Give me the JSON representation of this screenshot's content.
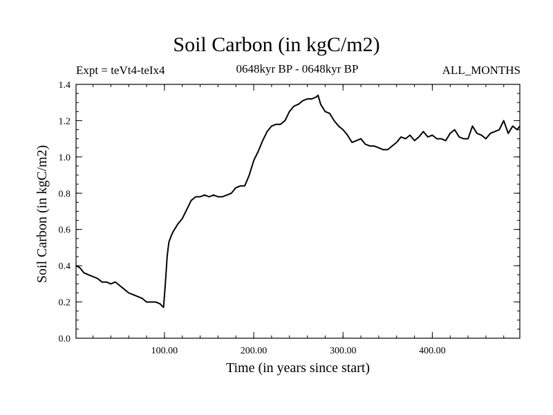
{
  "chart_data": {
    "type": "line",
    "title": "Soil Carbon (in kgC/m2)",
    "subtitle_left": "Expt = teVt4-teIx4",
    "subtitle_center": "0648kyr BP - 0648kyr BP",
    "subtitle_right": "ALL_MONTHS",
    "xlabel": "Time (in years since start)",
    "ylabel": "Soil Carbon (in kgC/m2)",
    "xlim": [
      1,
      498
    ],
    "ylim": [
      0.0,
      1.4
    ],
    "xticks": [
      100,
      200,
      300,
      400
    ],
    "xtick_labels": [
      "100.00",
      "200.00",
      "300.00",
      "400.00"
    ],
    "yticks": [
      0.0,
      0.2,
      0.4,
      0.6,
      0.8,
      1.0,
      1.2,
      1.4
    ],
    "ytick_labels": [
      "0.0",
      "0.2",
      "0.4",
      "0.6",
      "0.8",
      "1.0",
      "1.2",
      "1.4"
    ],
    "grid": false,
    "series": [
      {
        "x": [
          1,
          5,
          10,
          15,
          20,
          25,
          30,
          35,
          40,
          45,
          50,
          55,
          60,
          65,
          70,
          75,
          80,
          85,
          90,
          95,
          99,
          101,
          103,
          105,
          108,
          110,
          115,
          120,
          125,
          130,
          135,
          140,
          145,
          150,
          155,
          160,
          165,
          170,
          175,
          180,
          185,
          190,
          195,
          200,
          205,
          210,
          215,
          220,
          225,
          230,
          235,
          240,
          245,
          250,
          255,
          260,
          265,
          270,
          272,
          275,
          280,
          285,
          290,
          295,
          300,
          305,
          310,
          315,
          320,
          325,
          330,
          335,
          340,
          345,
          350,
          355,
          360,
          365,
          370,
          375,
          380,
          385,
          390,
          395,
          400,
          405,
          410,
          415,
          420,
          425,
          430,
          435,
          440,
          445,
          450,
          455,
          460,
          465,
          470,
          475,
          480,
          485,
          490,
          495,
          498
        ],
        "y": [
          0.4,
          0.39,
          0.36,
          0.35,
          0.34,
          0.33,
          0.31,
          0.31,
          0.3,
          0.31,
          0.29,
          0.27,
          0.25,
          0.24,
          0.23,
          0.22,
          0.2,
          0.2,
          0.2,
          0.19,
          0.17,
          0.3,
          0.45,
          0.53,
          0.57,
          0.59,
          0.63,
          0.66,
          0.71,
          0.76,
          0.78,
          0.78,
          0.79,
          0.78,
          0.79,
          0.78,
          0.78,
          0.79,
          0.8,
          0.83,
          0.84,
          0.84,
          0.9,
          0.98,
          1.03,
          1.09,
          1.14,
          1.17,
          1.18,
          1.18,
          1.2,
          1.25,
          1.28,
          1.29,
          1.31,
          1.32,
          1.32,
          1.33,
          1.34,
          1.29,
          1.25,
          1.24,
          1.2,
          1.17,
          1.15,
          1.12,
          1.08,
          1.09,
          1.1,
          1.07,
          1.06,
          1.06,
          1.05,
          1.04,
          1.04,
          1.06,
          1.08,
          1.11,
          1.1,
          1.12,
          1.09,
          1.11,
          1.14,
          1.11,
          1.12,
          1.1,
          1.1,
          1.09,
          1.13,
          1.15,
          1.11,
          1.1,
          1.1,
          1.17,
          1.13,
          1.12,
          1.1,
          1.13,
          1.14,
          1.15,
          1.2,
          1.13,
          1.17,
          1.15,
          1.17
        ]
      }
    ]
  }
}
